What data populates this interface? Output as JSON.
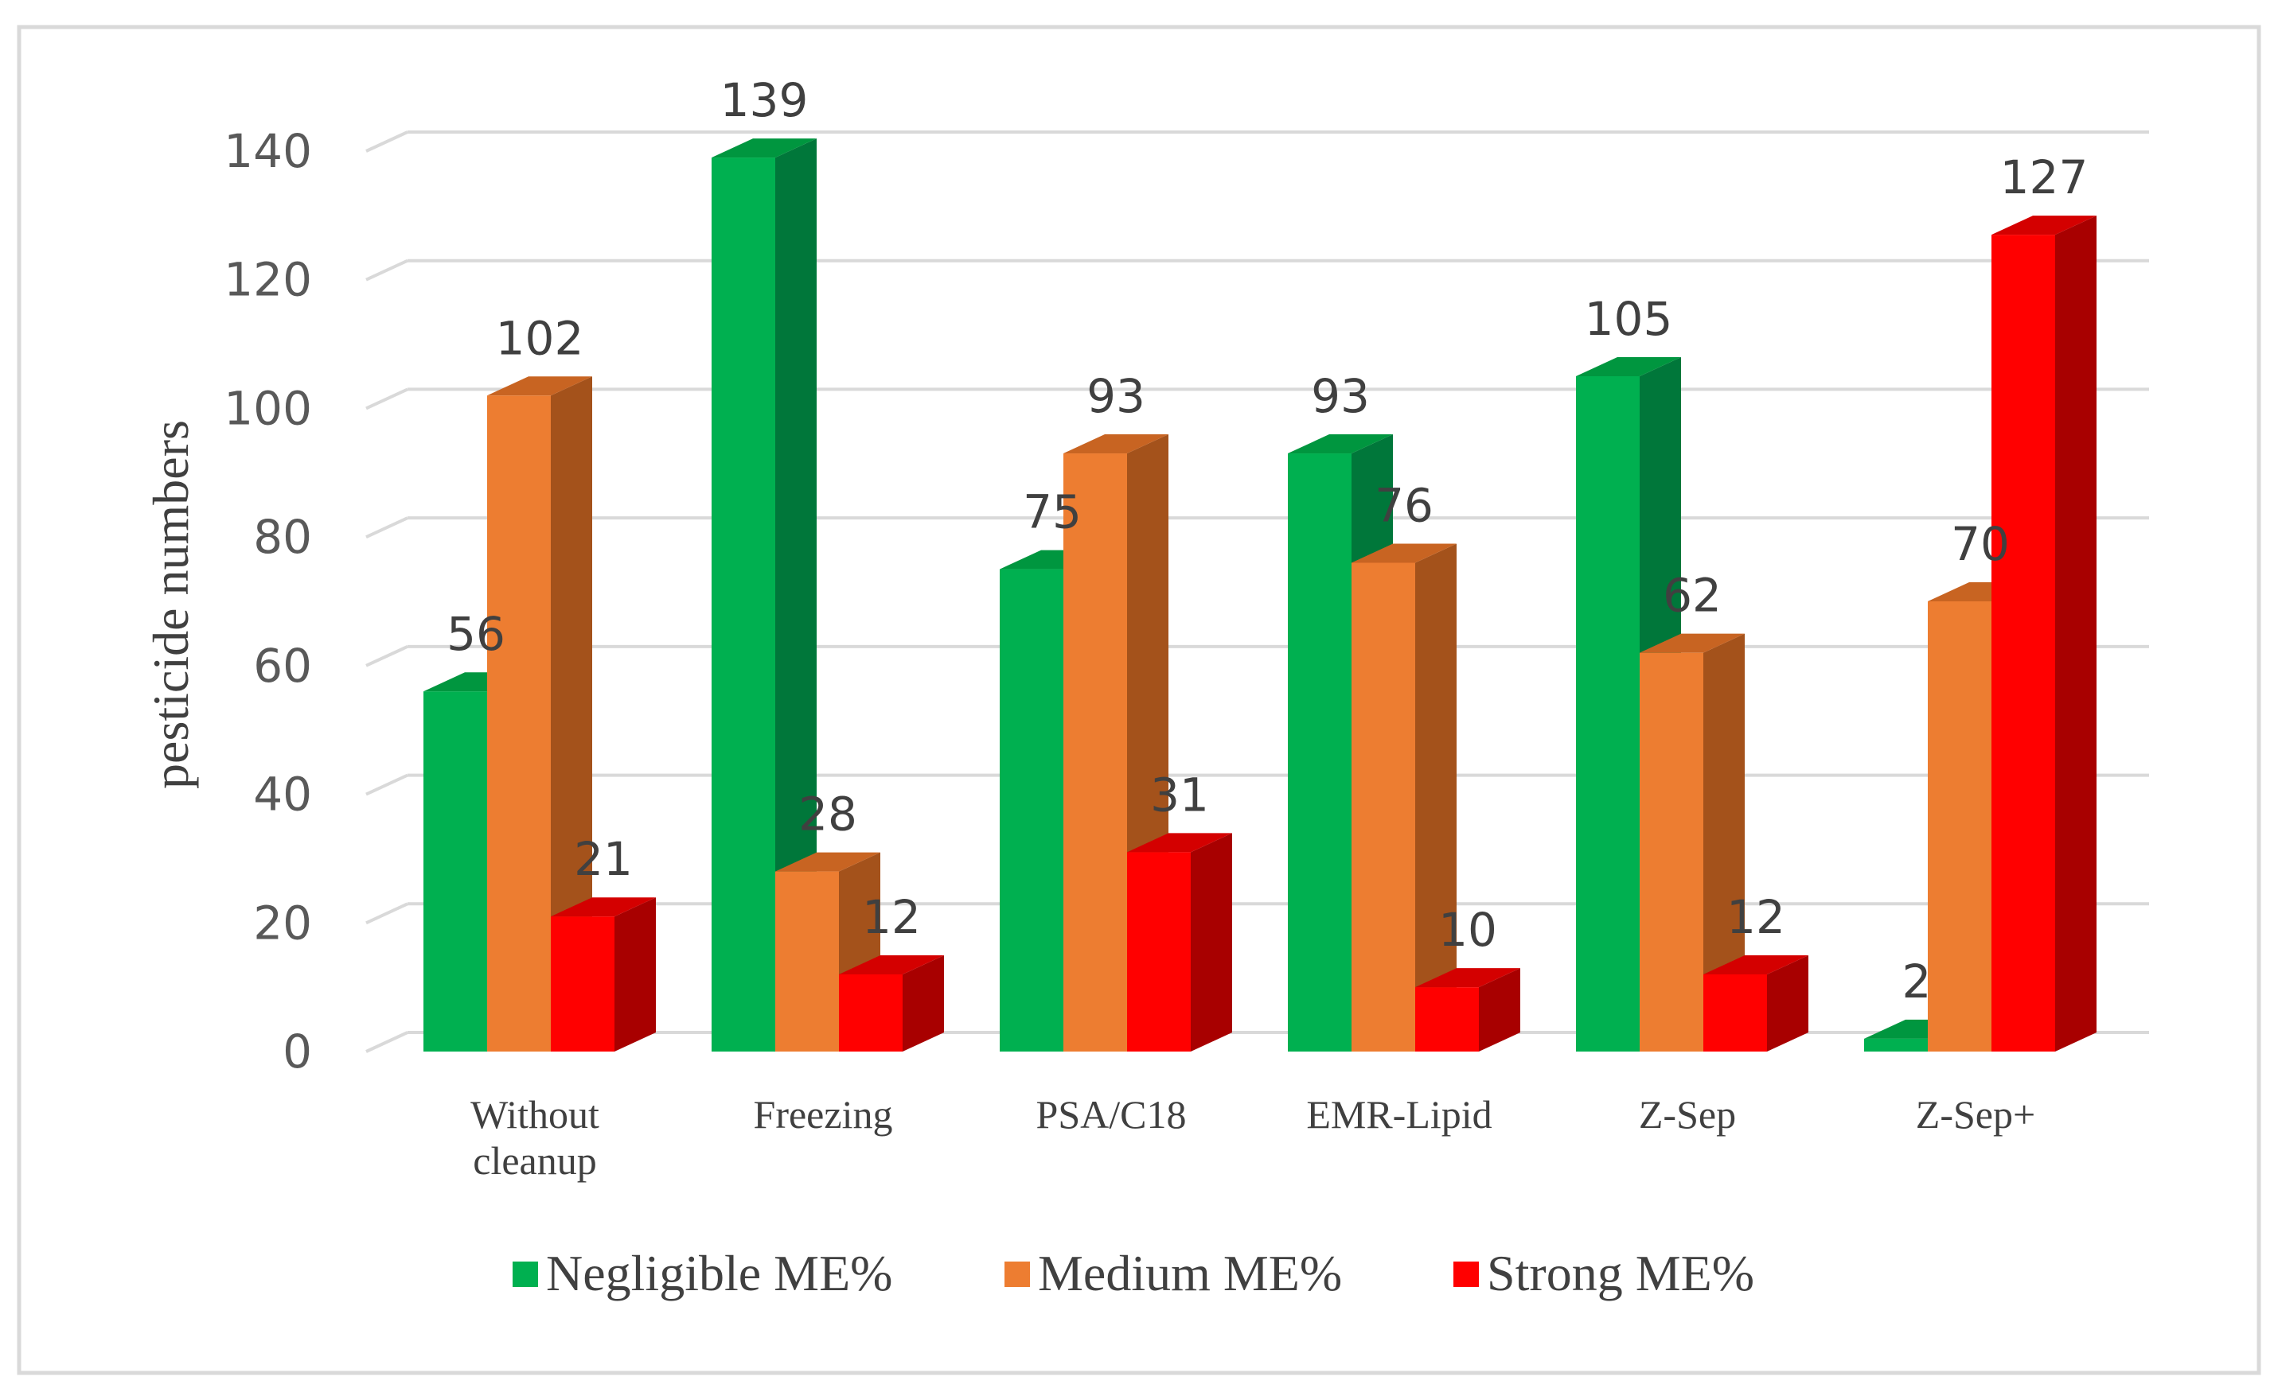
{
  "chart_data": {
    "type": "bar",
    "title": "",
    "xlabel": "",
    "ylabel": "pesticide numbers",
    "ylim": [
      0,
      140
    ],
    "yticks": [
      0,
      20,
      40,
      60,
      80,
      100,
      120,
      140
    ],
    "grid": true,
    "legend_position": "bottom",
    "categories": [
      [
        "Without",
        "cleanup"
      ],
      [
        "Freezing"
      ],
      [
        "PSA/C18"
      ],
      [
        "EMR-Lipid"
      ],
      [
        "Z-Sep"
      ],
      [
        "Z-Sep+"
      ]
    ],
    "series": [
      {
        "name": "Negligible ME%",
        "color": "#00b050",
        "side_color": "#00773a",
        "top_color": "#00963f",
        "values": [
          56,
          139,
          75,
          93,
          105,
          2
        ]
      },
      {
        "name": "Medium ME%",
        "color": "#ed7d31",
        "side_color": "#a4521b",
        "top_color": "#c86422",
        "values": [
          102,
          28,
          93,
          76,
          62,
          70
        ]
      },
      {
        "name": "Strong ME%",
        "color": "#ff0000",
        "side_color": "#a80000",
        "top_color": "#d40000",
        "values": [
          21,
          12,
          31,
          10,
          12,
          127
        ]
      }
    ],
    "frame_color": "#d9d9d9",
    "grid_color": "#d9d9d9"
  }
}
